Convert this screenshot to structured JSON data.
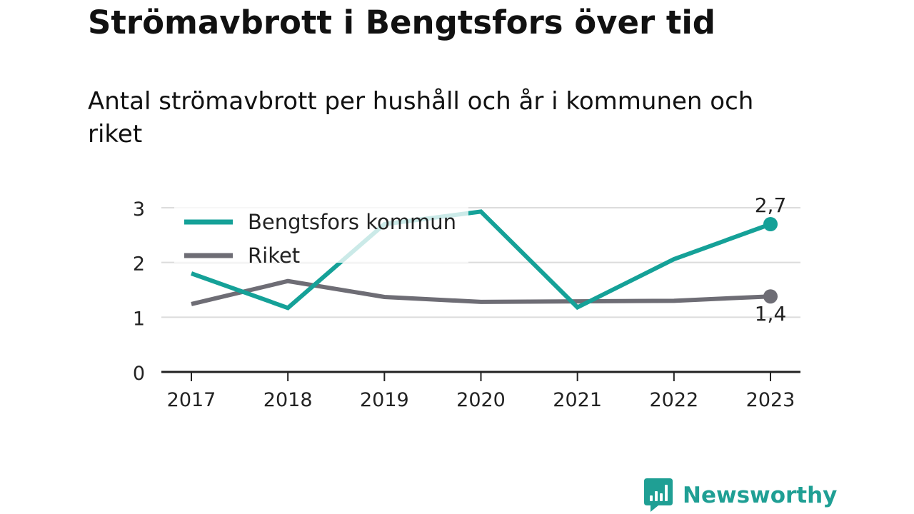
{
  "header": {
    "title": "Strömavbrott i Bengtsfors över tid",
    "subtitle": "Antal strömavbrott per hushåll och år i kommunen och riket"
  },
  "chart_data": {
    "type": "line",
    "title": "Strömavbrott i Bengtsfors över tid",
    "subtitle": "Antal strömavbrott per hushåll och år i kommunen och riket",
    "xlabel": "",
    "ylabel": "",
    "categories": [
      "2017",
      "2018",
      "2019",
      "2020",
      "2021",
      "2022",
      "2023"
    ],
    "ylim": [
      0,
      3
    ],
    "y_ticks": [
      "0",
      "1",
      "2",
      "3"
    ],
    "grid": true,
    "legend_position": "top-left",
    "series": [
      {
        "name": "Bengtsfors kommun",
        "values": [
          1.8,
          1.17,
          2.7,
          2.93,
          1.18,
          2.06,
          2.7
        ],
        "color": "#15a198",
        "end_label": "2,7"
      },
      {
        "name": "Riket",
        "values": [
          1.24,
          1.66,
          1.37,
          1.28,
          1.29,
          1.3,
          1.38
        ],
        "color": "#6e6d75",
        "end_label": "1,4"
      }
    ]
  },
  "brand": {
    "name": "Newsworthy",
    "logo_icon": "newsworthy-logo-icon",
    "color": "#1f9f94"
  }
}
